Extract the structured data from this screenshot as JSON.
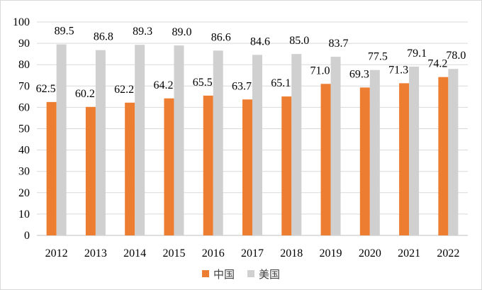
{
  "chart_data": {
    "type": "bar",
    "categories": [
      "2012",
      "2013",
      "2014",
      "2015",
      "2016",
      "2017",
      "2018",
      "2019",
      "2020",
      "2021",
      "2022"
    ],
    "series": [
      {
        "name": "中国",
        "color": "#ed7d31",
        "values": [
          62.5,
          60.2,
          62.2,
          64.2,
          65.5,
          63.7,
          65.1,
          71.0,
          69.3,
          71.3,
          74.2
        ],
        "labels": [
          "62.5",
          "60.2",
          "62.2",
          "64.2",
          "65.5",
          "63.7",
          "65.1",
          "71.0",
          "69.3",
          "71.3",
          "74.2"
        ]
      },
      {
        "name": "美国",
        "color": "#d0d0d0",
        "values": [
          89.5,
          86.8,
          89.3,
          89.0,
          86.6,
          84.6,
          85.0,
          83.7,
          77.5,
          79.1,
          78.0
        ],
        "labels": [
          "89.5",
          "86.8",
          "89.3",
          "89.0",
          "86.6",
          "84.6",
          "85.0",
          "83.7",
          "77.5",
          "79.1",
          "78.0"
        ]
      }
    ],
    "ylim": [
      0,
      100
    ],
    "yticks": [
      "0",
      "10",
      "20",
      "30",
      "40",
      "50",
      "60",
      "70",
      "80",
      "90",
      "100"
    ],
    "grid": true,
    "legend_position": "bottom"
  }
}
